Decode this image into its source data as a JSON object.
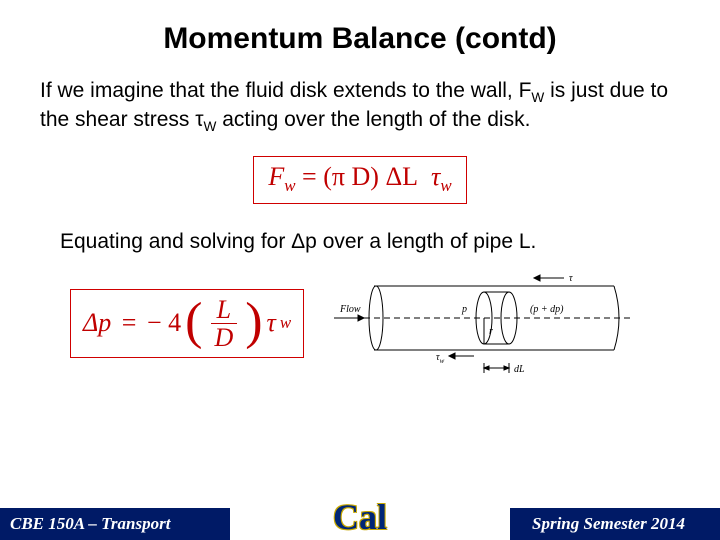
{
  "title": "Momentum Balance (contd)",
  "paragraph1_html": "If we imagine that the fluid disk extends to the wall, F<span class=\"sub\">W</span> is just due to the shear stress τ<span class=\"sub\">W</span> acting over the length of the disk.",
  "eq1": {
    "lhs": "F",
    "lhs_sub": "w",
    "rhs_a": "(π D)",
    "rhs_b": "ΔL",
    "rhs_c": "τ",
    "rhs_c_sub": "w"
  },
  "paragraph2_html": "Equating and solving for Δp over a length of pipe L.",
  "eq2": {
    "lhs": "Δp",
    "coeff": "− 4",
    "frac_num": "L",
    "frac_den": "D",
    "tail": "τ",
    "tail_sub": "w"
  },
  "diagram": {
    "flow_label": "Flow",
    "p_label": "p",
    "pdp_label": "(p + dp)",
    "tau_top": "τ",
    "tauw_label": "τ",
    "tauw_sub": "w",
    "r_label": "r",
    "dL_label": "dL",
    "stroke": "#000000",
    "fontsize": 9
  },
  "footer": {
    "left": "CBE 150A – Transport",
    "right": "Spring Semester 2014",
    "logo": "Cal"
  },
  "colors": {
    "accent_red": "#c00000",
    "navy": "#001a66",
    "cal_blue": "#002676",
    "cal_gold": "#c8a800"
  }
}
